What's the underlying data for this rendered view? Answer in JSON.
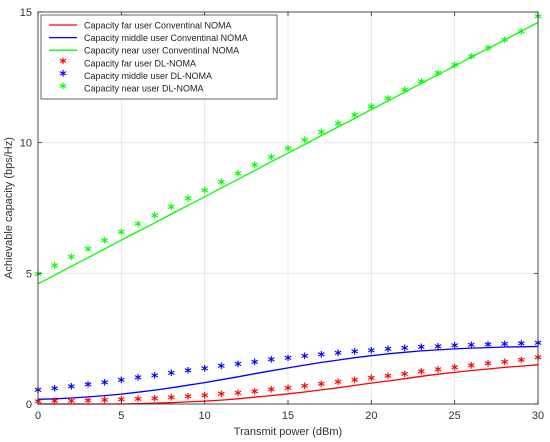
{
  "chart_data": {
    "type": "line",
    "title": "",
    "xlabel": "Transmit power (dBm)",
    "ylabel": "Achievable capacity (bps/Hz)",
    "xlim": [
      0,
      30
    ],
    "ylim": [
      0,
      15
    ],
    "xticks": [
      "0",
      "5",
      "10",
      "15",
      "20",
      "25",
      "30"
    ],
    "yticks": [
      "0",
      "5",
      "10",
      "15"
    ],
    "grid": true,
    "legend_position": "top-left",
    "x": [
      0,
      1,
      2,
      3,
      4,
      5,
      6,
      7,
      8,
      9,
      10,
      11,
      12,
      13,
      14,
      15,
      16,
      17,
      18,
      19,
      20,
      21,
      22,
      23,
      24,
      25,
      26,
      27,
      28,
      29,
      30
    ],
    "series": [
      {
        "name": "Capacity far user Conventinal NOMA",
        "style": "line",
        "color": "#ff0000",
        "values": [
          0.0,
          0.0,
          0.0,
          0.0,
          0.0,
          0.0,
          0.01,
          0.03,
          0.05,
          0.08,
          0.11,
          0.15,
          0.2,
          0.26,
          0.32,
          0.39,
          0.46,
          0.54,
          0.62,
          0.71,
          0.8,
          0.88,
          0.97,
          1.06,
          1.14,
          1.21,
          1.28,
          1.34,
          1.4,
          1.45,
          1.5
        ]
      },
      {
        "name": "Capacity middle user Conventinal NOMA",
        "style": "line",
        "color": "#0000ff",
        "values": [
          0.18,
          0.2,
          0.23,
          0.27,
          0.32,
          0.38,
          0.45,
          0.53,
          0.62,
          0.72,
          0.82,
          0.93,
          1.04,
          1.16,
          1.27,
          1.38,
          1.49,
          1.59,
          1.68,
          1.77,
          1.85,
          1.92,
          1.98,
          2.03,
          2.07,
          2.11,
          2.14,
          2.16,
          2.18,
          2.19,
          2.2
        ]
      },
      {
        "name": "Capacity near user Conventinal NOMA",
        "style": "line",
        "color": "#00ff00",
        "values": [
          4.6,
          4.93,
          5.27,
          5.6,
          5.93,
          6.27,
          6.6,
          6.93,
          7.27,
          7.6,
          7.93,
          8.27,
          8.6,
          8.93,
          9.27,
          9.6,
          9.93,
          10.27,
          10.6,
          10.93,
          11.27,
          11.6,
          11.93,
          12.27,
          12.6,
          12.93,
          13.27,
          13.6,
          13.93,
          14.27,
          14.6
        ]
      },
      {
        "name": "Capacity far user DL-NOMA",
        "style": "marker",
        "marker": "*",
        "color": "#ff0000",
        "values": [
          0.02,
          0.03,
          0.04,
          0.05,
          0.07,
          0.09,
          0.11,
          0.14,
          0.17,
          0.21,
          0.25,
          0.3,
          0.35,
          0.41,
          0.47,
          0.54,
          0.61,
          0.68,
          0.76,
          0.84,
          0.92,
          1.0,
          1.08,
          1.16,
          1.24,
          1.32,
          1.4,
          1.47,
          1.54,
          1.61,
          1.7
        ]
      },
      {
        "name": "Capacity middle user DL-NOMA",
        "style": "marker",
        "marker": "*",
        "color": "#0000ff",
        "values": [
          0.45,
          0.52,
          0.59,
          0.67,
          0.75,
          0.84,
          0.93,
          1.02,
          1.11,
          1.2,
          1.29,
          1.38,
          1.46,
          1.54,
          1.62,
          1.69,
          1.76,
          1.82,
          1.88,
          1.93,
          1.98,
          2.02,
          2.06,
          2.1,
          2.13,
          2.16,
          2.18,
          2.2,
          2.22,
          2.24,
          2.26
        ]
      },
      {
        "name": "Capacity near user DL-NOMA",
        "style": "marker",
        "marker": "*",
        "color": "#00ff00",
        "values": [
          4.9,
          5.22,
          5.54,
          5.86,
          6.18,
          6.5,
          6.82,
          7.14,
          7.46,
          7.78,
          8.1,
          8.42,
          8.74,
          9.06,
          9.38,
          9.7,
          10.02,
          10.34,
          10.66,
          10.98,
          11.3,
          11.62,
          11.94,
          12.26,
          12.58,
          12.9,
          13.22,
          13.54,
          13.86,
          14.18,
          14.75
        ]
      }
    ]
  }
}
